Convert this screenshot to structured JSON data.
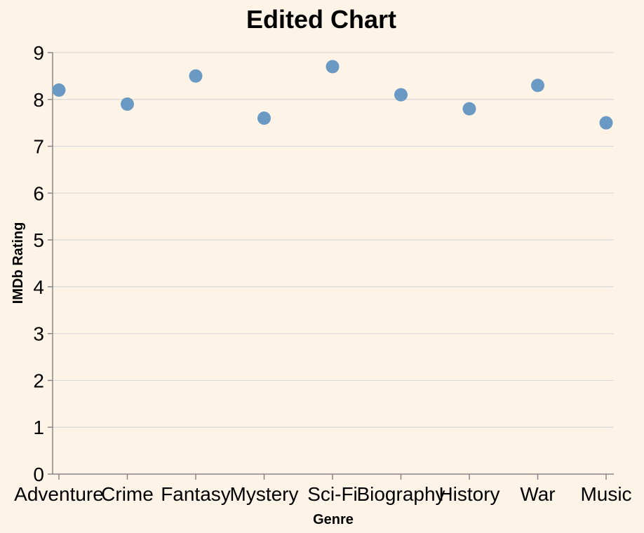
{
  "chart_data": {
    "type": "scatter",
    "title": "Edited Chart",
    "xlabel": "Genre",
    "ylabel": "IMDb Rating",
    "categories": [
      "Adventure",
      "Crime",
      "Fantasy",
      "Mystery",
      "Sci-Fi",
      "Biography",
      "History",
      "War",
      "Music"
    ],
    "values": [
      8.2,
      7.9,
      8.5,
      7.6,
      8.7,
      8.1,
      7.8,
      8.3,
      7.5
    ],
    "ylim": [
      0,
      9
    ],
    "yticks": [
      0,
      1,
      2,
      3,
      4,
      5,
      6,
      7,
      8,
      9
    ],
    "grid": true,
    "legend": "none"
  },
  "colors": {
    "background": "#fdf3e6",
    "point": "#6a9ac4",
    "grid": "#d9d9d9",
    "axis": "#888888"
  }
}
